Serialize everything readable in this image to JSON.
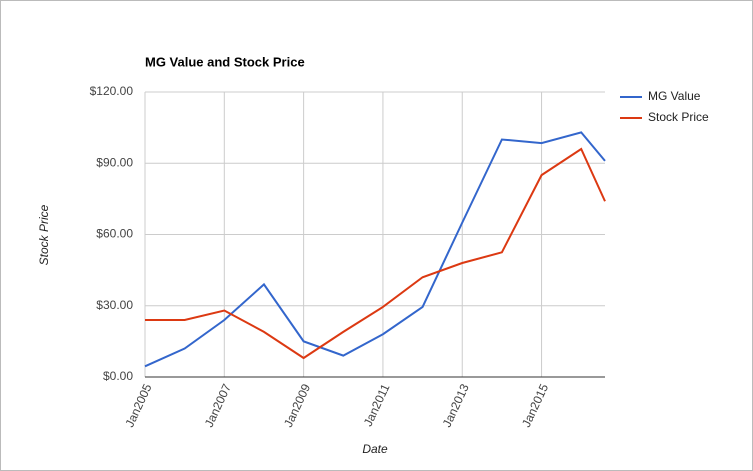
{
  "chart_data": {
    "type": "line",
    "title": "MG Value and Stock Price",
    "x_label": "Date",
    "y_label": "Stock Price",
    "x": [
      2005,
      2006,
      2007,
      2008,
      2009,
      2010,
      2011,
      2012,
      2013,
      2014,
      2015,
      2016,
      2016.6
    ],
    "series": [
      {
        "name": "MG Value",
        "color": "#3366cc",
        "values": [
          4.5,
          12,
          24,
          39,
          15,
          9,
          18,
          29.5,
          65,
          100,
          98.5,
          103,
          91
        ]
      },
      {
        "name": "Stock Price",
        "color": "#dc3912",
        "values": [
          24,
          24,
          28,
          19,
          8,
          19,
          29.5,
          42,
          48,
          52.5,
          85,
          96,
          74
        ]
      }
    ],
    "xlim": [
      2005,
      2016.6
    ],
    "xticks": [
      {
        "value": 2005,
        "label": "Jan2005"
      },
      {
        "value": 2007,
        "label": "Jan2007"
      },
      {
        "value": 2009,
        "label": "Jan2009"
      },
      {
        "value": 2011,
        "label": "Jan2011"
      },
      {
        "value": 2013,
        "label": "Jan2013"
      },
      {
        "value": 2015,
        "label": "Jan2015"
      }
    ],
    "ylim": [
      0,
      120
    ],
    "yticks": [
      {
        "value": 0,
        "label": "$0.00"
      },
      {
        "value": 30,
        "label": "$30.00"
      },
      {
        "value": 60,
        "label": "$60.00"
      },
      {
        "value": 90,
        "label": "$90.00"
      },
      {
        "value": 120,
        "label": "$120.00"
      }
    ],
    "grid": true,
    "legend": "right"
  }
}
